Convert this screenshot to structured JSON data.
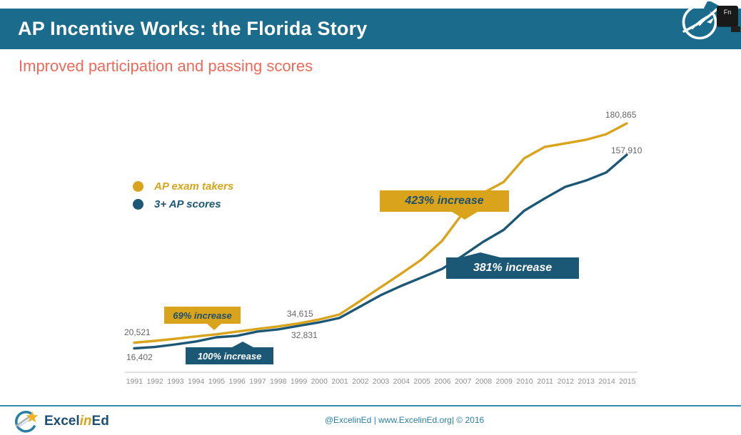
{
  "header": {
    "title": "AP Incentive Works: the Florida Story",
    "subtitle": "Improved participation and passing scores",
    "fn_label": "Fn",
    "bar_color": "#1b6b8c",
    "subtitle_color": "#ee6a5a"
  },
  "chart_data": {
    "type": "line",
    "title": "AP Incentive Works: the Florida Story",
    "subtitle": "Improved participation and passing scores",
    "x": [
      1991,
      1992,
      1993,
      1994,
      1995,
      1996,
      1997,
      1998,
      1999,
      2000,
      2001,
      2002,
      2003,
      2004,
      2005,
      2006,
      2007,
      2008,
      2009,
      2010,
      2011,
      2012,
      2013,
      2014,
      2015
    ],
    "series": [
      {
        "name": "AP exam takers",
        "color": "#d9a41b",
        "values": [
          20521,
          21900,
          23400,
          25100,
          26700,
          28600,
          30600,
          32400,
          34615,
          37500,
          41200,
          51000,
          61000,
          71000,
          81300,
          95000,
          115000,
          130000,
          138000,
          155300,
          163600,
          166200,
          168800,
          173000,
          180865
        ]
      },
      {
        "name": "3+ AP scores",
        "color": "#1c5876",
        "values": [
          16402,
          17400,
          19300,
          21400,
          24500,
          25600,
          28700,
          30300,
          32831,
          35400,
          38600,
          46900,
          55200,
          62000,
          68200,
          74500,
          84000,
          94300,
          103000,
          117000,
          126000,
          134500,
          139000,
          145000,
          157910
        ]
      }
    ],
    "ylim": [
      0,
      190000
    ],
    "grid": false,
    "legend_position": "upper-left",
    "annotations": [
      {
        "text": "69% increase",
        "series": "AP exam takers",
        "color": "#d9a41b",
        "text_color": "#1c4f70",
        "pointer": "down"
      },
      {
        "text": "100% increase",
        "series": "3+ AP scores",
        "color": "#1b5876",
        "text_color": "#ffffff",
        "pointer": "up"
      },
      {
        "text": "423% increase",
        "series": "AP exam takers",
        "color": "#d9a41b",
        "text_color": "#1c4f70",
        "pointer": "down"
      },
      {
        "text": "381% increase",
        "series": "3+ AP scores",
        "color": "#1b5876",
        "text_color": "#ffffff",
        "pointer": "up"
      }
    ],
    "point_labels": [
      {
        "text": "20,521",
        "series": "AP exam takers",
        "x": 1991
      },
      {
        "text": "16,402",
        "series": "3+ AP scores",
        "x": 1991
      },
      {
        "text": "34,615",
        "series": "AP exam takers",
        "x": 1999
      },
      {
        "text": "32,831",
        "series": "3+ AP scores",
        "x": 1999
      },
      {
        "text": "180,865",
        "series": "AP exam takers",
        "x": 2015
      },
      {
        "text": "157,910",
        "series": "3+ AP scores",
        "x": 2015
      }
    ]
  },
  "footer": {
    "logo_excel": "Excel",
    "logo_in": "in",
    "logo_ed": "Ed",
    "credit": "@ExcelinEd | www.ExcelinEd.org| © 2016",
    "credit_color": "#2a7fa5"
  }
}
